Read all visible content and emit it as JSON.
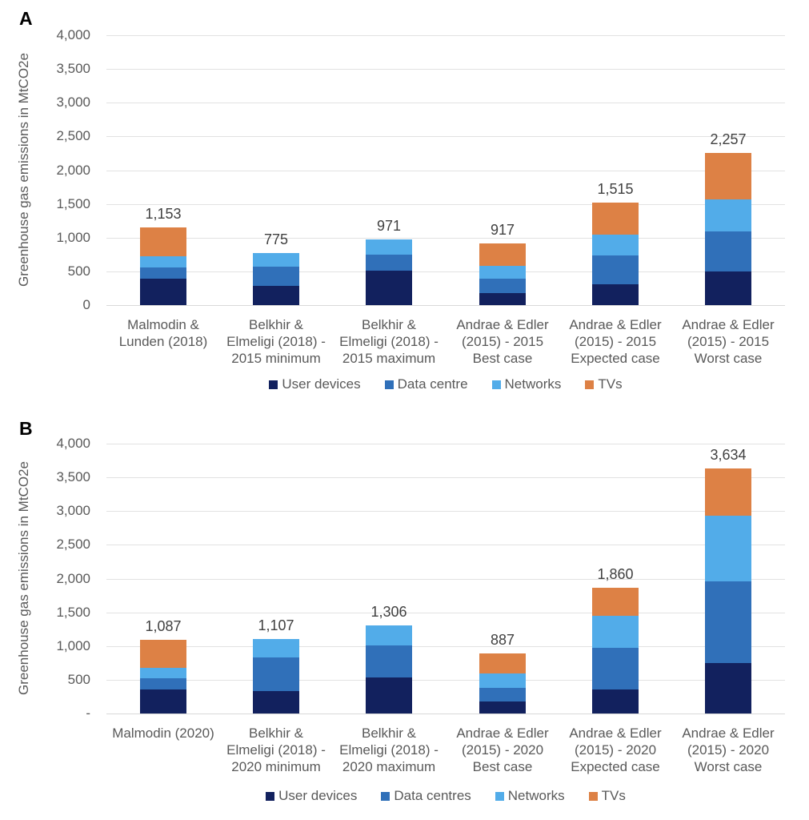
{
  "figure": {
    "background": "#ffffff",
    "text_color": "#595959",
    "total_label_color": "#404040",
    "gridline_color": "#e2e2e2",
    "axis_line_color": "#d9d9d9"
  },
  "chart_data": [
    {
      "type": "bar",
      "stacked": true,
      "panel": "A",
      "ylabel": "Greenhouse gas emissions in MtCO2e",
      "ylim": [
        0,
        4000
      ],
      "ytick_step": 500,
      "grid": true,
      "legend_position": "bottom",
      "ytick_labels": [
        "4,000",
        "3,500",
        "3,000",
        "2,500",
        "2,000",
        "1,500",
        "1,000",
        "500",
        "0"
      ],
      "categories": [
        [
          "Malmodin &",
          "Lunden (2018)"
        ],
        [
          "Belkhir &",
          "Elmeligi (2018) -",
          "2015 minimum"
        ],
        [
          "Belkhir &",
          "Elmeligi (2018) -",
          "2015 maximum"
        ],
        [
          "Andrae & Edler",
          "(2015) - 2015",
          "Best case"
        ],
        [
          "Andrae & Edler",
          "(2015) - 2015",
          "Expected case"
        ],
        [
          "Andrae & Edler",
          "(2015) - 2015",
          "Worst case"
        ]
      ],
      "series": [
        {
          "name": "User devices",
          "color": "#12215E",
          "values": [
            394,
            290,
            510,
            175,
            308,
            497
          ]
        },
        {
          "name": "Data centre",
          "color": "#3070B9",
          "values": [
            161,
            280,
            235,
            212,
            431,
            592
          ]
        },
        {
          "name": "Networks",
          "color": "#52ACE9",
          "values": [
            173,
            205,
            226,
            198,
            310,
            481
          ]
        },
        {
          "name": "TVs",
          "color": "#DD8145",
          "values": [
            425,
            0,
            0,
            332,
            466,
            687
          ]
        }
      ],
      "totals": [
        "1,153",
        "775",
        "971",
        "917",
        "1,515",
        "2,257"
      ]
    },
    {
      "type": "bar",
      "stacked": true,
      "panel": "B",
      "ylabel": "Greenhouse gas emissions in MtCO2e",
      "ylim": [
        0,
        4000
      ],
      "ytick_step": 500,
      "grid": true,
      "legend_position": "bottom",
      "ytick_labels": [
        "4,000",
        "3,500",
        "3,000",
        "2,500",
        "2,000",
        "1,500",
        "1,000",
        "500",
        "-"
      ],
      "categories": [
        [
          "Malmodin (2020)"
        ],
        [
          "Belkhir &",
          "Elmeligi (2018) -",
          "2020 minimum"
        ],
        [
          "Belkhir &",
          "Elmeligi (2018) -",
          "2020 maximum"
        ],
        [
          "Andrae & Edler",
          "(2015) - 2020",
          "Best case"
        ],
        [
          "Andrae & Edler",
          "(2015) - 2020",
          "Expected case"
        ],
        [
          "Andrae & Edler",
          "(2015) - 2020",
          "Worst case"
        ]
      ],
      "series": [
        {
          "name": "User devices",
          "color": "#12215E",
          "values": [
            360,
            329,
            534,
            179,
            353,
            752
          ]
        },
        {
          "name": "Data centres",
          "color": "#3070B9",
          "values": [
            160,
            499,
            480,
            198,
            618,
            1203
          ]
        },
        {
          "name": "Networks",
          "color": "#52ACE9",
          "values": [
            155,
            279,
            292,
            215,
            476,
            982
          ]
        },
        {
          "name": "TVs",
          "color": "#DD8145",
          "values": [
            412,
            0,
            0,
            295,
            413,
            697
          ]
        }
      ],
      "totals": [
        "1,087",
        "1,107",
        "1,306",
        "887",
        "1,860",
        "3,634"
      ]
    }
  ]
}
